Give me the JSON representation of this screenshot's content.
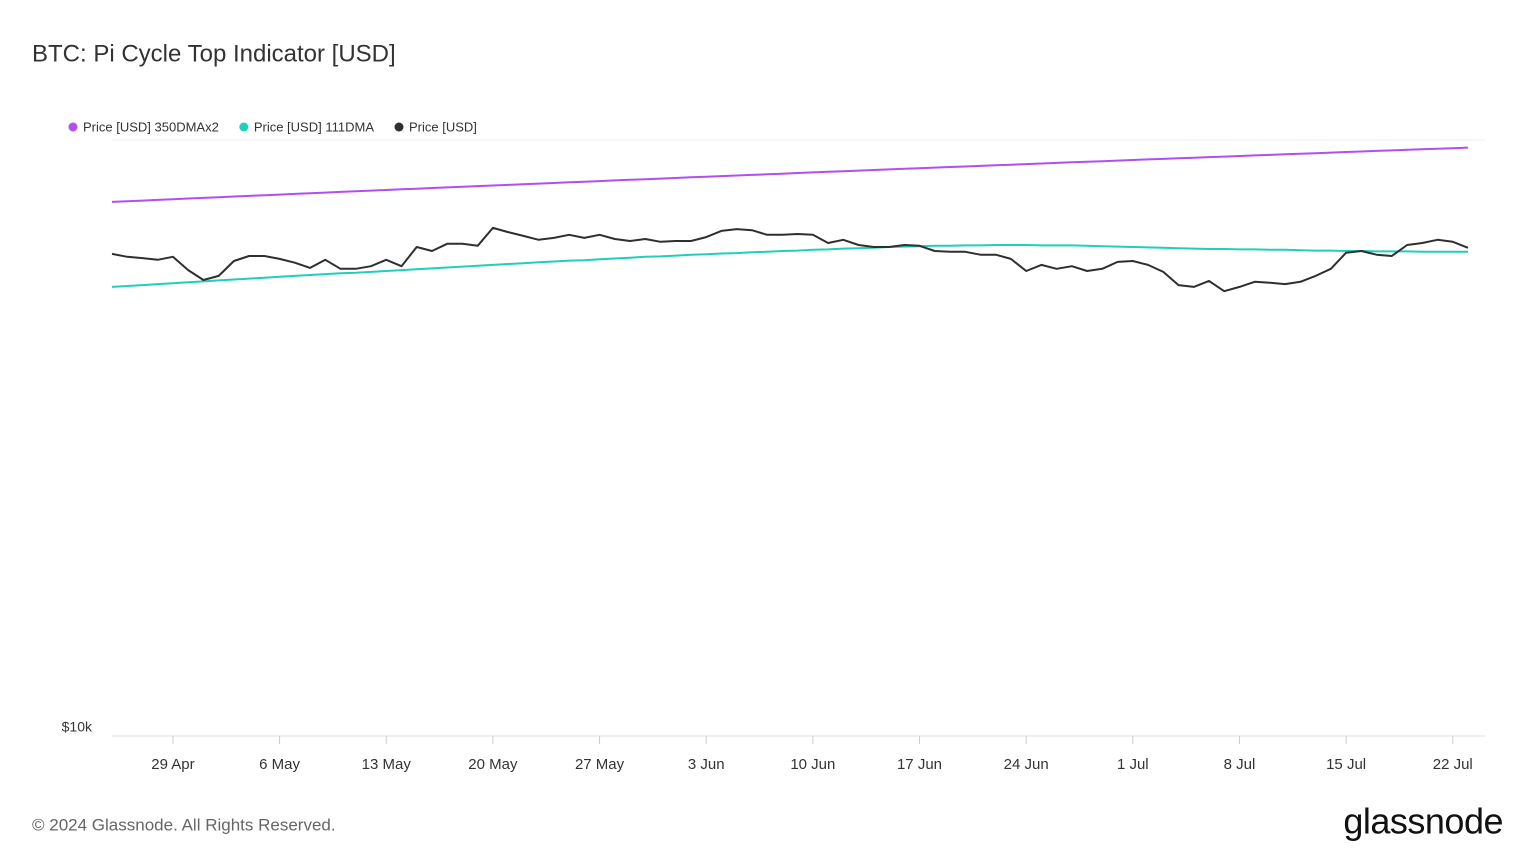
{
  "chart_data": {
    "type": "line",
    "title": "BTC: Pi Cycle Top Indicator [USD]",
    "categories": [
      null,
      null,
      null,
      null,
      "29 Apr",
      null,
      null,
      null,
      null,
      null,
      null,
      "6 May",
      null,
      null,
      null,
      null,
      null,
      null,
      "13 May",
      null,
      null,
      null,
      null,
      null,
      null,
      "20 May",
      null,
      null,
      null,
      null,
      null,
      null,
      "27 May",
      null,
      null,
      null,
      null,
      null,
      null,
      "3 Jun",
      null,
      null,
      null,
      null,
      null,
      null,
      "10 Jun",
      null,
      null,
      null,
      null,
      null,
      null,
      "17 Jun",
      null,
      null,
      null,
      null,
      null,
      null,
      "24 Jun",
      null,
      null,
      null,
      null,
      null,
      null,
      "1 Jul",
      null,
      null,
      null,
      null,
      null,
      null,
      "8 Jul",
      null,
      null,
      null,
      null,
      null,
      null,
      "15 Jul",
      null,
      null,
      null,
      null,
      null,
      null,
      "22 Jul",
      null
    ],
    "series": [
      {
        "name": "Price [USD] 350DMAx2",
        "color": "#b14ff2",
        "values": [
          77100,
          77300,
          77500,
          77700,
          77900,
          78100,
          78300,
          78500,
          78700,
          78900,
          79100,
          79300,
          79500,
          79700,
          79900,
          80100,
          80300,
          80500,
          80700,
          80900,
          81100,
          81300,
          81500,
          81700,
          81900,
          82100,
          82300,
          82500,
          82700,
          82900,
          83100,
          83300,
          83500,
          83700,
          83900,
          84100,
          84300,
          84500,
          84700,
          84900,
          85100,
          85300,
          85500,
          85700,
          85900,
          86100,
          86300,
          86500,
          86700,
          86900,
          87100,
          87300,
          87500,
          87700,
          87900,
          88100,
          88300,
          88500,
          88700,
          88900,
          89100,
          89300,
          89500,
          89700,
          89900,
          90100,
          90300,
          90500,
          90700,
          90900,
          91100,
          91300,
          91500,
          91700,
          91900,
          92100,
          92300,
          92500,
          92700,
          92900,
          93100,
          93300,
          93500,
          93700,
          93900,
          94100,
          94300,
          94500,
          94700,
          94900
        ]
      },
      {
        "name": "Price [USD] 111DMA",
        "color": "#1ecfbb",
        "values": [
          55700,
          55900,
          56100,
          56300,
          56500,
          56700,
          56900,
          57100,
          57300,
          57500,
          57700,
          57900,
          58100,
          58300,
          58500,
          58700,
          58800,
          59000,
          59200,
          59400,
          59600,
          59800,
          60000,
          60200,
          60400,
          60600,
          60800,
          61000,
          61200,
          61400,
          61600,
          61700,
          61900,
          62100,
          62300,
          62500,
          62600,
          62800,
          63000,
          63100,
          63300,
          63400,
          63600,
          63700,
          63900,
          64000,
          64200,
          64300,
          64500,
          64600,
          64700,
          64900,
          65000,
          65100,
          65200,
          65200,
          65300,
          65300,
          65400,
          65400,
          65400,
          65300,
          65300,
          65300,
          65200,
          65100,
          65000,
          64900,
          64800,
          64700,
          64600,
          64500,
          64400,
          64400,
          64300,
          64300,
          64200,
          64200,
          64100,
          64000,
          64000,
          63900,
          63900,
          63800,
          63800,
          63800,
          63700,
          63700,
          63700,
          63700
        ]
      },
      {
        "name": "Price [USD]",
        "color": "#2f2f2f",
        "values": [
          63200,
          62500,
          62200,
          61800,
          62500,
          59400,
          57200,
          58100,
          61500,
          62700,
          62700,
          62000,
          61100,
          59900,
          61800,
          59700,
          59700,
          60300,
          61800,
          60300,
          64900,
          63900,
          65700,
          65700,
          65200,
          69800,
          68700,
          67700,
          66700,
          67200,
          68000,
          67200,
          68000,
          66900,
          66400,
          66900,
          66200,
          66400,
          66400,
          67400,
          69000,
          69500,
          69200,
          68000,
          68000,
          68200,
          68000,
          65900,
          66700,
          65400,
          64900,
          64900,
          65400,
          65200,
          63900,
          63700,
          63700,
          63000,
          63000,
          62000,
          59200,
          60600,
          59700,
          60300,
          59200,
          59700,
          61300,
          61500,
          60600,
          59000,
          56100,
          55700,
          57000,
          54800,
          55700,
          56800,
          56600,
          56300,
          56800,
          58100,
          59700,
          63500,
          63900,
          63000,
          62700,
          65400,
          65900,
          66700,
          66200,
          64700
        ]
      }
    ],
    "ylim": [
      10000,
      97700
    ],
    "yticks": [
      {
        "value": 10000,
        "label": "$10k"
      }
    ],
    "log_scale": true,
    "grid": false
  },
  "footer": {
    "copyright": "© 2024 Glassnode. All Rights Reserved.",
    "logo": "glassnode"
  }
}
